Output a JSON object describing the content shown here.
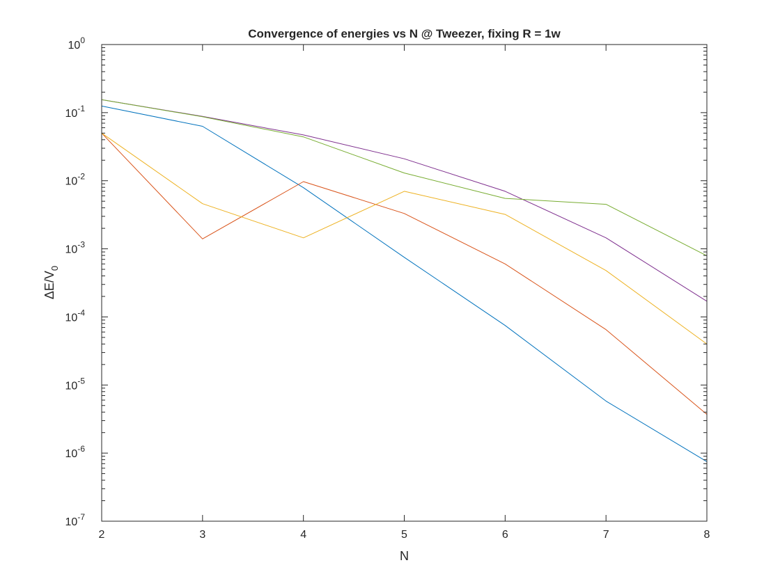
{
  "chart_data": {
    "type": "line",
    "title": "Convergence of energies vs N @ Tweezer, fixing R = 1w",
    "xlabel": "N",
    "ylabel": {
      "base": "ΔE/V",
      "subscript": "0"
    },
    "x": [
      2,
      3,
      4,
      5,
      6,
      7,
      8
    ],
    "xlim": [
      2,
      8
    ],
    "ylim": [
      1e-07,
      1
    ],
    "yscale": "log",
    "x_ticks": [
      "2",
      "3",
      "4",
      "5",
      "6",
      "7",
      "8"
    ],
    "y_ticks": [
      {
        "exp": -7,
        "base": "10",
        "power": "-7"
      },
      {
        "exp": -6,
        "base": "10",
        "power": "-6"
      },
      {
        "exp": -5,
        "base": "10",
        "power": "-5"
      },
      {
        "exp": -4,
        "base": "10",
        "power": "-4"
      },
      {
        "exp": -3,
        "base": "10",
        "power": "-3"
      },
      {
        "exp": -2,
        "base": "10",
        "power": "-2"
      },
      {
        "exp": -1,
        "base": "10",
        "power": "-1"
      },
      {
        "exp": 0,
        "base": "10",
        "power": "0"
      }
    ],
    "grid": false,
    "legend": false,
    "series": [
      {
        "color": "#0072BD",
        "values": [
          0.125,
          0.063,
          0.0079,
          0.00075,
          7.5e-05,
          5.8e-06,
          7.5e-07
        ]
      },
      {
        "color": "#D95319",
        "values": [
          0.05,
          0.0014,
          0.0097,
          0.0033,
          0.0006,
          6.5e-05,
          3.7e-06
        ]
      },
      {
        "color": "#EDB120",
        "values": [
          0.05,
          0.0046,
          0.00145,
          0.007,
          0.0032,
          0.00048,
          4e-05
        ]
      },
      {
        "color": "#7E2F8E",
        "values": [
          0.155,
          0.088,
          0.047,
          0.021,
          0.007,
          0.00145,
          0.00017
        ]
      },
      {
        "color": "#77AC30",
        "values": [
          0.155,
          0.087,
          0.044,
          0.013,
          0.0055,
          0.0045,
          0.00079
        ]
      }
    ]
  }
}
